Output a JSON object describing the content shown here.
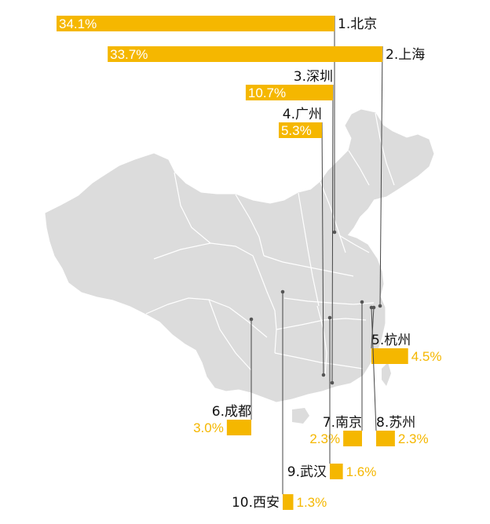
{
  "chart_data": {
    "type": "bar",
    "title": "",
    "xlabel": "",
    "ylabel": "",
    "bar_color": "#f5b700",
    "map_color": "#dcdcdc",
    "border_color": "#ffffff",
    "leader_color": "#444444",
    "categories": [
      "1.北京",
      "2.上海",
      "3.深圳",
      "4.广州",
      "5.杭州",
      "6.成都",
      "7.南京",
      "8.苏州",
      "9.武汉",
      "10.西安"
    ],
    "values": [
      34.1,
      33.7,
      10.7,
      5.3,
      4.5,
      3.0,
      2.3,
      2.3,
      1.6,
      1.3
    ],
    "value_labels": [
      "34.1%",
      "33.7%",
      "10.7%",
      "5.3%",
      "4.5%",
      "3.0%",
      "2.3%",
      "2.3%",
      "1.6%",
      "1.3%"
    ]
  }
}
